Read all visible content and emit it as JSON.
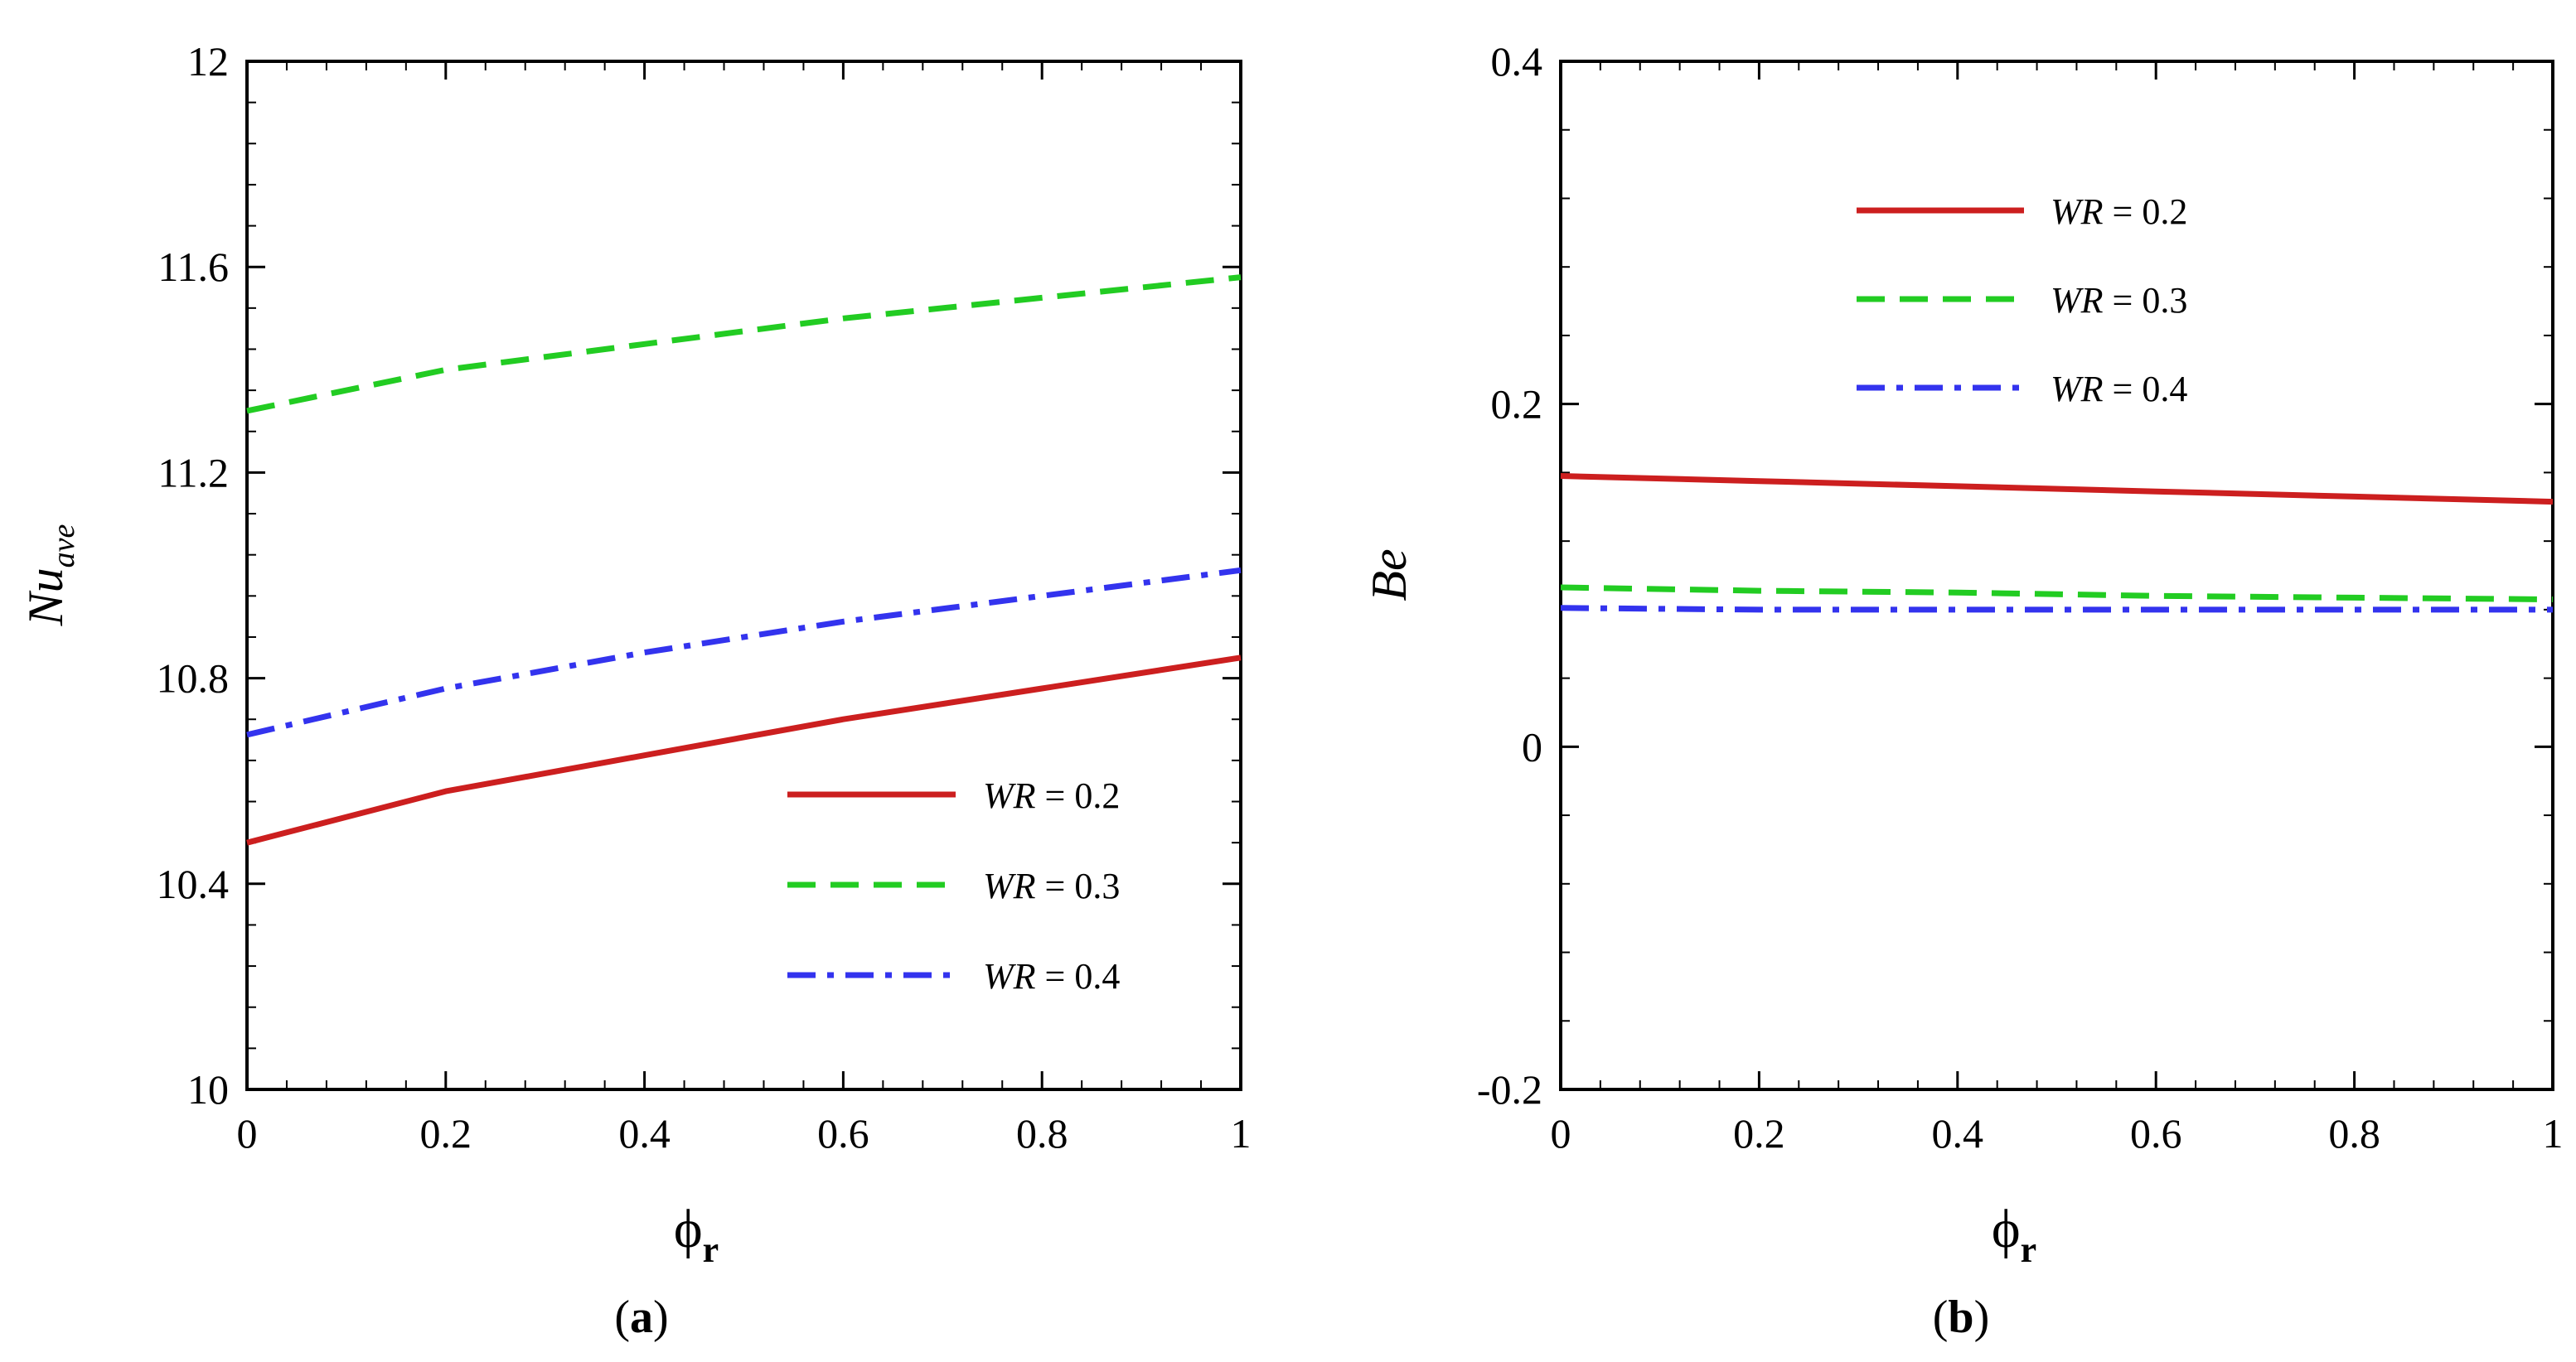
{
  "chart_data": [
    {
      "type": "line",
      "panel_label": "(a)",
      "panel_letter": "a",
      "ylabel_main": "Nu",
      "ylabel_sub": "ave",
      "xlabel_main": "ϕ",
      "xlabel_sub": "r",
      "xlim": [
        0,
        1
      ],
      "ylim": [
        10,
        12
      ],
      "xticks": [
        0,
        0.2,
        0.4,
        0.6,
        0.8,
        1
      ],
      "xtick_labels": [
        "0",
        "0.2",
        "0.4",
        "0.6",
        "0.8",
        "1"
      ],
      "yticks": [
        10,
        10.4,
        10.8,
        11.2,
        11.6,
        12
      ],
      "ytick_labels": [
        "10",
        "10.4",
        "10.8",
        "11.2",
        "11.6",
        "12"
      ],
      "legend_position": "bottom-right",
      "x": [
        0,
        0.2,
        0.4,
        0.6,
        0.8,
        1
      ],
      "series": [
        {
          "name": "WR = 0.2",
          "var": "WR",
          "value_text": " = 0.2",
          "color": "#cc1f1f",
          "dash": "solid",
          "values": [
            10.48,
            10.58,
            10.65,
            10.72,
            10.78,
            10.84
          ]
        },
        {
          "name": "WR = 0.3",
          "var": "WR",
          "value_text": " = 0.3",
          "color": "#22cc22",
          "dash": "dashed",
          "values": [
            11.32,
            11.4,
            11.45,
            11.5,
            11.54,
            11.58
          ]
        },
        {
          "name": "WR = 0.4",
          "var": "WR",
          "value_text": " = 0.4",
          "color": "#3333ee",
          "dash": "dashdot",
          "values": [
            10.69,
            10.78,
            10.85,
            10.91,
            10.96,
            11.01
          ]
        }
      ]
    },
    {
      "type": "line",
      "panel_label": "(b)",
      "panel_letter": "b",
      "ylabel_main": "Be",
      "ylabel_sub": "",
      "xlabel_main": "ϕ",
      "xlabel_sub": "r",
      "xlim": [
        0,
        1
      ],
      "ylim": [
        -0.2,
        0.4
      ],
      "xticks": [
        0,
        0.2,
        0.4,
        0.6,
        0.8,
        1
      ],
      "xtick_labels": [
        "0",
        "0.2",
        "0.4",
        "0.6",
        "0.8",
        "1"
      ],
      "yticks": [
        -0.2,
        0,
        0.2,
        0.4
      ],
      "ytick_labels": [
        "-0.2",
        "0",
        "0.2",
        "0.4"
      ],
      "legend_position": "top-center",
      "x": [
        0,
        0.2,
        0.4,
        0.6,
        0.8,
        1
      ],
      "series": [
        {
          "name": "WR = 0.2",
          "var": "WR",
          "value_text": " = 0.2",
          "color": "#cc1f1f",
          "dash": "solid",
          "values": [
            0.158,
            0.155,
            0.152,
            0.149,
            0.146,
            0.143
          ]
        },
        {
          "name": "WR = 0.3",
          "var": "WR",
          "value_text": " = 0.3",
          "color": "#22cc22",
          "dash": "dashed",
          "values": [
            0.093,
            0.091,
            0.09,
            0.088,
            0.087,
            0.086
          ]
        },
        {
          "name": "WR = 0.4",
          "var": "WR",
          "value_text": " = 0.4",
          "color": "#3333ee",
          "dash": "dashdot",
          "values": [
            0.081,
            0.08,
            0.08,
            0.08,
            0.08,
            0.08
          ]
        }
      ]
    }
  ]
}
